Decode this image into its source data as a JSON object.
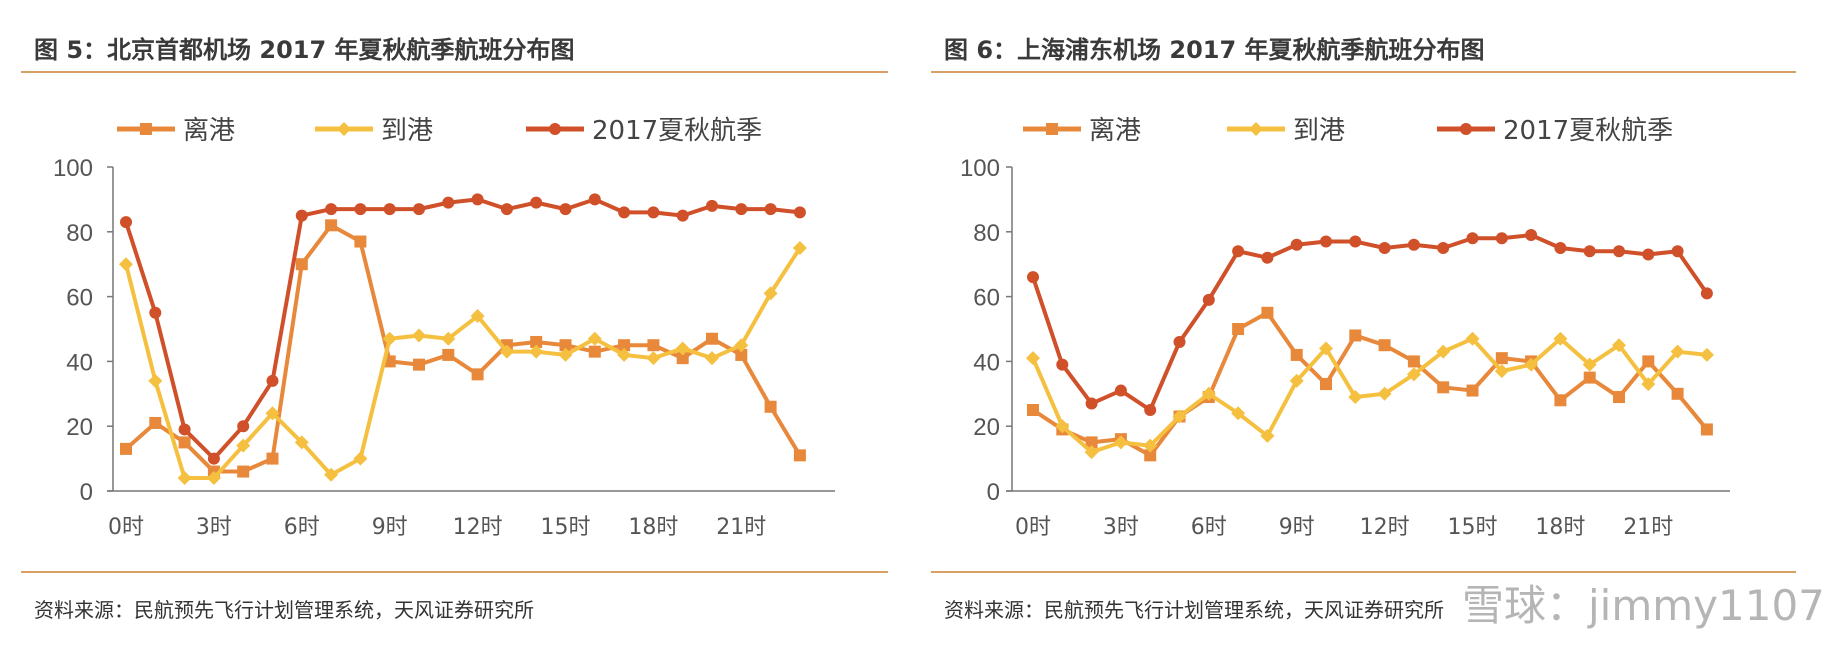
{
  "charts_meta": [
    {
      "title": "图 5：北京首都机场 2017 年夏秋航季航班分布图",
      "source": "资料来源：民航预先飞行计划管理系统，天风证券研究所"
    },
    {
      "title": "图 6：上海浦东机场 2017 年夏秋航季航班分布图",
      "source": "资料来源：民航预先飞行计划管理系统，天风证券研究所"
    }
  ],
  "watermark": "雪球：jimmy1107",
  "colors": {
    "depart": "#E8883A",
    "arrive": "#F5C040",
    "season": "#D0502A"
  },
  "chart_data": [
    {
      "type": "line",
      "title": "图 5：北京首都机场 2017 年夏秋航季航班分布图",
      "x": [
        0,
        1,
        2,
        3,
        4,
        5,
        6,
        7,
        8,
        9,
        10,
        11,
        12,
        13,
        14,
        15,
        16,
        17,
        18,
        19,
        20,
        21,
        22,
        23
      ],
      "x_tick_labels": [
        "0时",
        "3时",
        "6时",
        "9时",
        "12时",
        "15时",
        "18时",
        "21时"
      ],
      "x_tick_values": [
        0,
        3,
        6,
        9,
        12,
        15,
        18,
        21
      ],
      "ylim": [
        0,
        100
      ],
      "y_ticks": [
        0,
        20,
        40,
        60,
        80,
        100
      ],
      "grid": false,
      "legend": "top",
      "series": [
        {
          "name": "离港",
          "marker": "square",
          "values": [
            13,
            21,
            15,
            6,
            6,
            10,
            70,
            82,
            77,
            40,
            39,
            42,
            36,
            45,
            46,
            45,
            43,
            45,
            45,
            41,
            47,
            42,
            26,
            11
          ]
        },
        {
          "name": "到港",
          "marker": "diamond",
          "values": [
            70,
            34,
            4,
            4,
            14,
            24,
            15,
            5,
            10,
            47,
            48,
            47,
            54,
            43,
            43,
            42,
            47,
            42,
            41,
            44,
            41,
            45,
            61,
            75
          ]
        },
        {
          "name": "2017夏秋航季",
          "marker": "circle",
          "values": [
            83,
            55,
            19,
            10,
            20,
            34,
            85,
            87,
            87,
            87,
            87,
            89,
            90,
            87,
            89,
            87,
            90,
            86,
            86,
            85,
            88,
            87,
            87,
            86
          ]
        }
      ]
    },
    {
      "type": "line",
      "title": "图 6：上海浦东机场 2017 年夏秋航季航班分布图",
      "x": [
        0,
        1,
        2,
        3,
        4,
        5,
        6,
        7,
        8,
        9,
        10,
        11,
        12,
        13,
        14,
        15,
        16,
        17,
        18,
        19,
        20,
        21,
        22,
        23
      ],
      "x_tick_labels": [
        "0时",
        "3时",
        "6时",
        "9时",
        "12时",
        "15时",
        "18时",
        "21时"
      ],
      "x_tick_values": [
        0,
        3,
        6,
        9,
        12,
        15,
        18,
        21
      ],
      "ylim": [
        0,
        100
      ],
      "y_ticks": [
        0,
        20,
        40,
        60,
        80,
        100
      ],
      "grid": false,
      "legend": "top",
      "series": [
        {
          "name": "离港",
          "marker": "square",
          "values": [
            25,
            19,
            15,
            16,
            11,
            23,
            29,
            50,
            55,
            42,
            33,
            48,
            45,
            40,
            32,
            31,
            41,
            40,
            28,
            35,
            29,
            40,
            30,
            19
          ]
        },
        {
          "name": "到港",
          "marker": "diamond",
          "values": [
            41,
            20,
            12,
            15,
            14,
            23,
            30,
            24,
            17,
            34,
            44,
            29,
            30,
            36,
            43,
            47,
            37,
            39,
            47,
            39,
            45,
            33,
            43,
            42
          ]
        },
        {
          "name": "2017夏秋航季",
          "marker": "circle",
          "values": [
            66,
            39,
            27,
            31,
            25,
            46,
            59,
            74,
            72,
            76,
            77,
            77,
            75,
            76,
            75,
            78,
            78,
            79,
            75,
            74,
            74,
            73,
            74,
            61
          ]
        }
      ]
    }
  ]
}
